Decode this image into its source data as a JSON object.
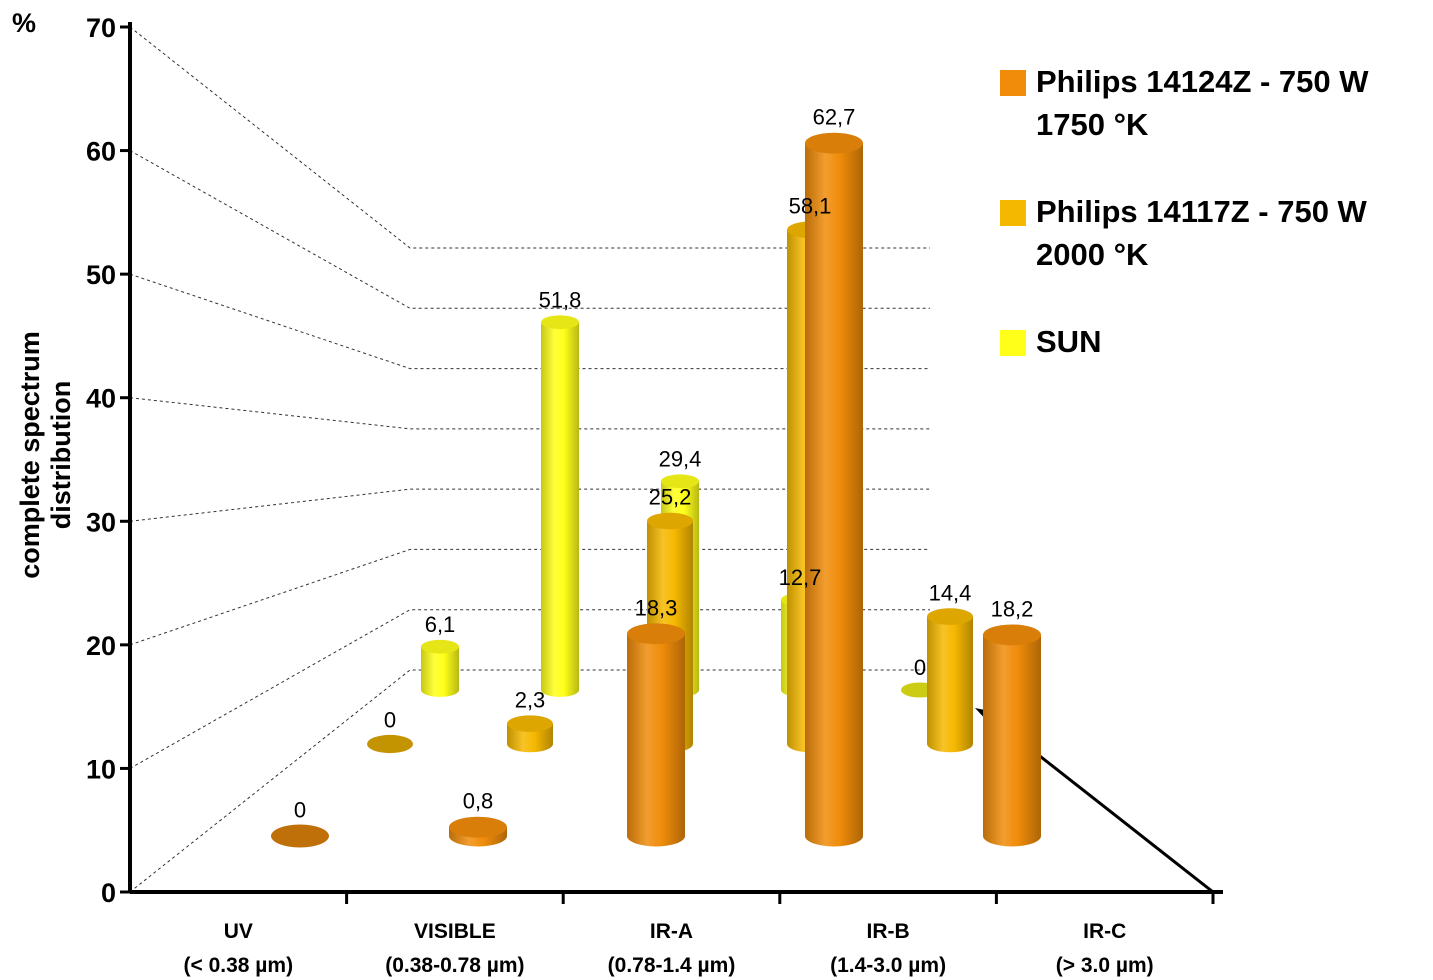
{
  "chart_data": {
    "type": "bar",
    "ylabel": "complete spectrum distribution",
    "y_unit": "%",
    "ylim": [
      0,
      70
    ],
    "yticks": [
      "0",
      "10",
      "20",
      "30",
      "40",
      "50",
      "60",
      "70"
    ],
    "categories": [
      {
        "name": "UV",
        "range": "(< 0.38 µm)"
      },
      {
        "name": "VISIBLE",
        "range": "(0.38-0.78 µm)"
      },
      {
        "name": "IR-A",
        "range": "(0.78-1.4 µm)"
      },
      {
        "name": "IR-B",
        "range": "(1.4-3.0 µm)"
      },
      {
        "name": "IR-C",
        "range": "(> 3.0 µm)"
      }
    ],
    "series": [
      {
        "name": "Philips 14124Z - 750 W\n1750 °K",
        "color": "#f08c0a",
        "values": [
          0,
          0.8,
          18.3,
          62.7,
          18.2
        ],
        "labels": [
          "0",
          "0,8",
          "18,3",
          "62,7",
          "18,2"
        ]
      },
      {
        "name": "Philips 14117Z - 750 W\n2000 °K",
        "color": "#f5b800",
        "values": [
          0,
          2.3,
          25.2,
          58.1,
          14.4
        ],
        "labels": [
          "0",
          "2,3",
          "25,2",
          "58,1",
          "14,4"
        ]
      },
      {
        "name": "SUN",
        "color": "#ffff1a",
        "values": [
          6.1,
          51.8,
          29.4,
          12.7,
          0
        ],
        "labels": [
          "6,1",
          "51,8",
          "29,4",
          "12,7",
          "0"
        ]
      }
    ],
    "legend_position": "top-right",
    "view": "3D"
  }
}
